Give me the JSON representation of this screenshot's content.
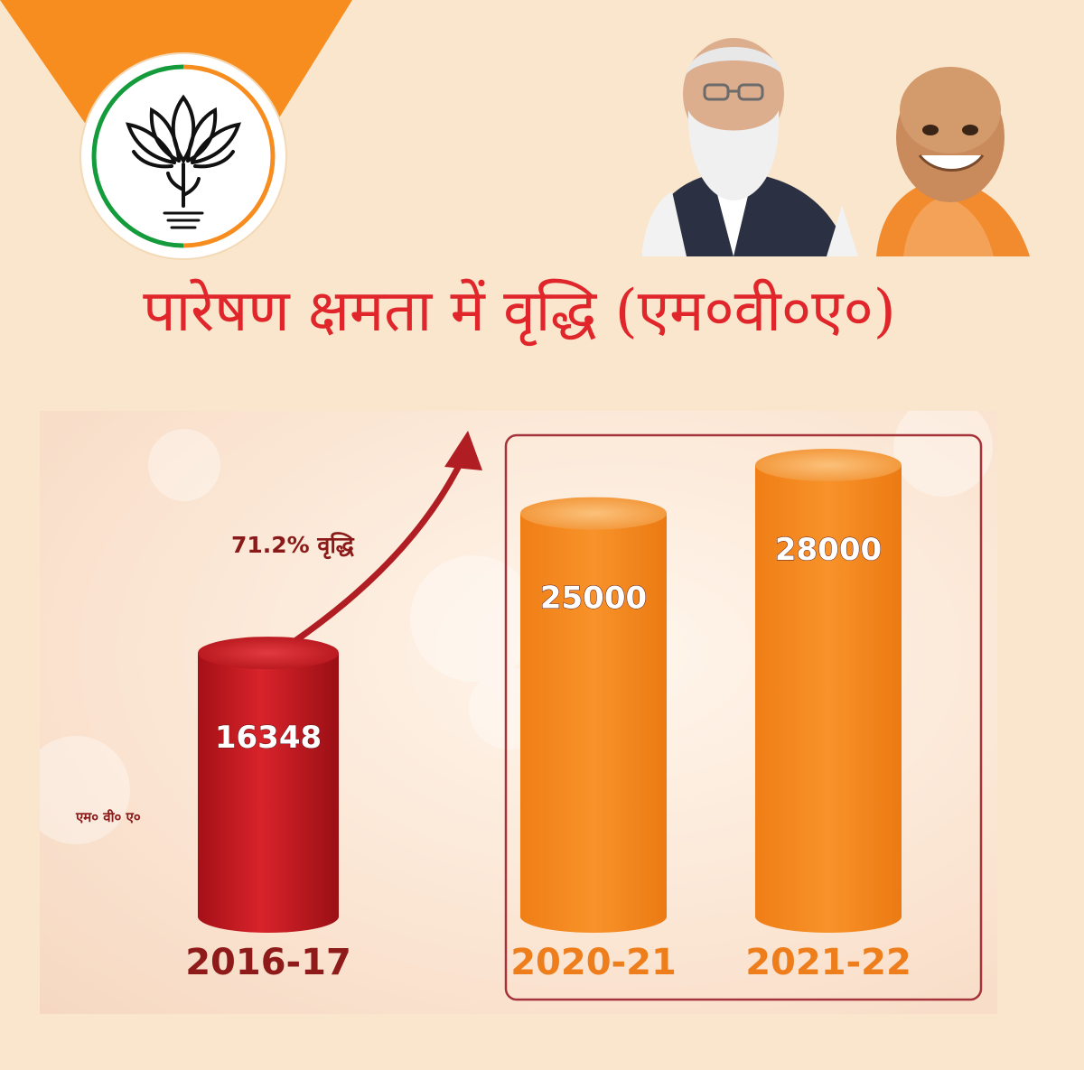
{
  "header": {
    "title": "पारेषण क्षमता में वृद्धि (एम०वी०ए०)"
  },
  "colors": {
    "background": "#f9e6cc",
    "accent_orange": "#f78d1e",
    "title_red": "#e0262b",
    "bar_red": "#c2161d",
    "bar_orange": "#f78d1e"
  },
  "icons": {
    "logo": "lotus-icon",
    "photo": "leaders-photo"
  },
  "chart_data": {
    "type": "bar",
    "categories": [
      "2016-17",
      "2020-21",
      "2021-22"
    ],
    "values": [
      16348,
      25000,
      28000
    ],
    "bar_colors": [
      "#c2161d",
      "#f78d1e",
      "#f78d1e"
    ],
    "unit_label": "एम० वी० ए०",
    "growth_annotation": "71.2% वृद्धि",
    "highlighted_categories": [
      "2020-21",
      "2021-22"
    ]
  }
}
